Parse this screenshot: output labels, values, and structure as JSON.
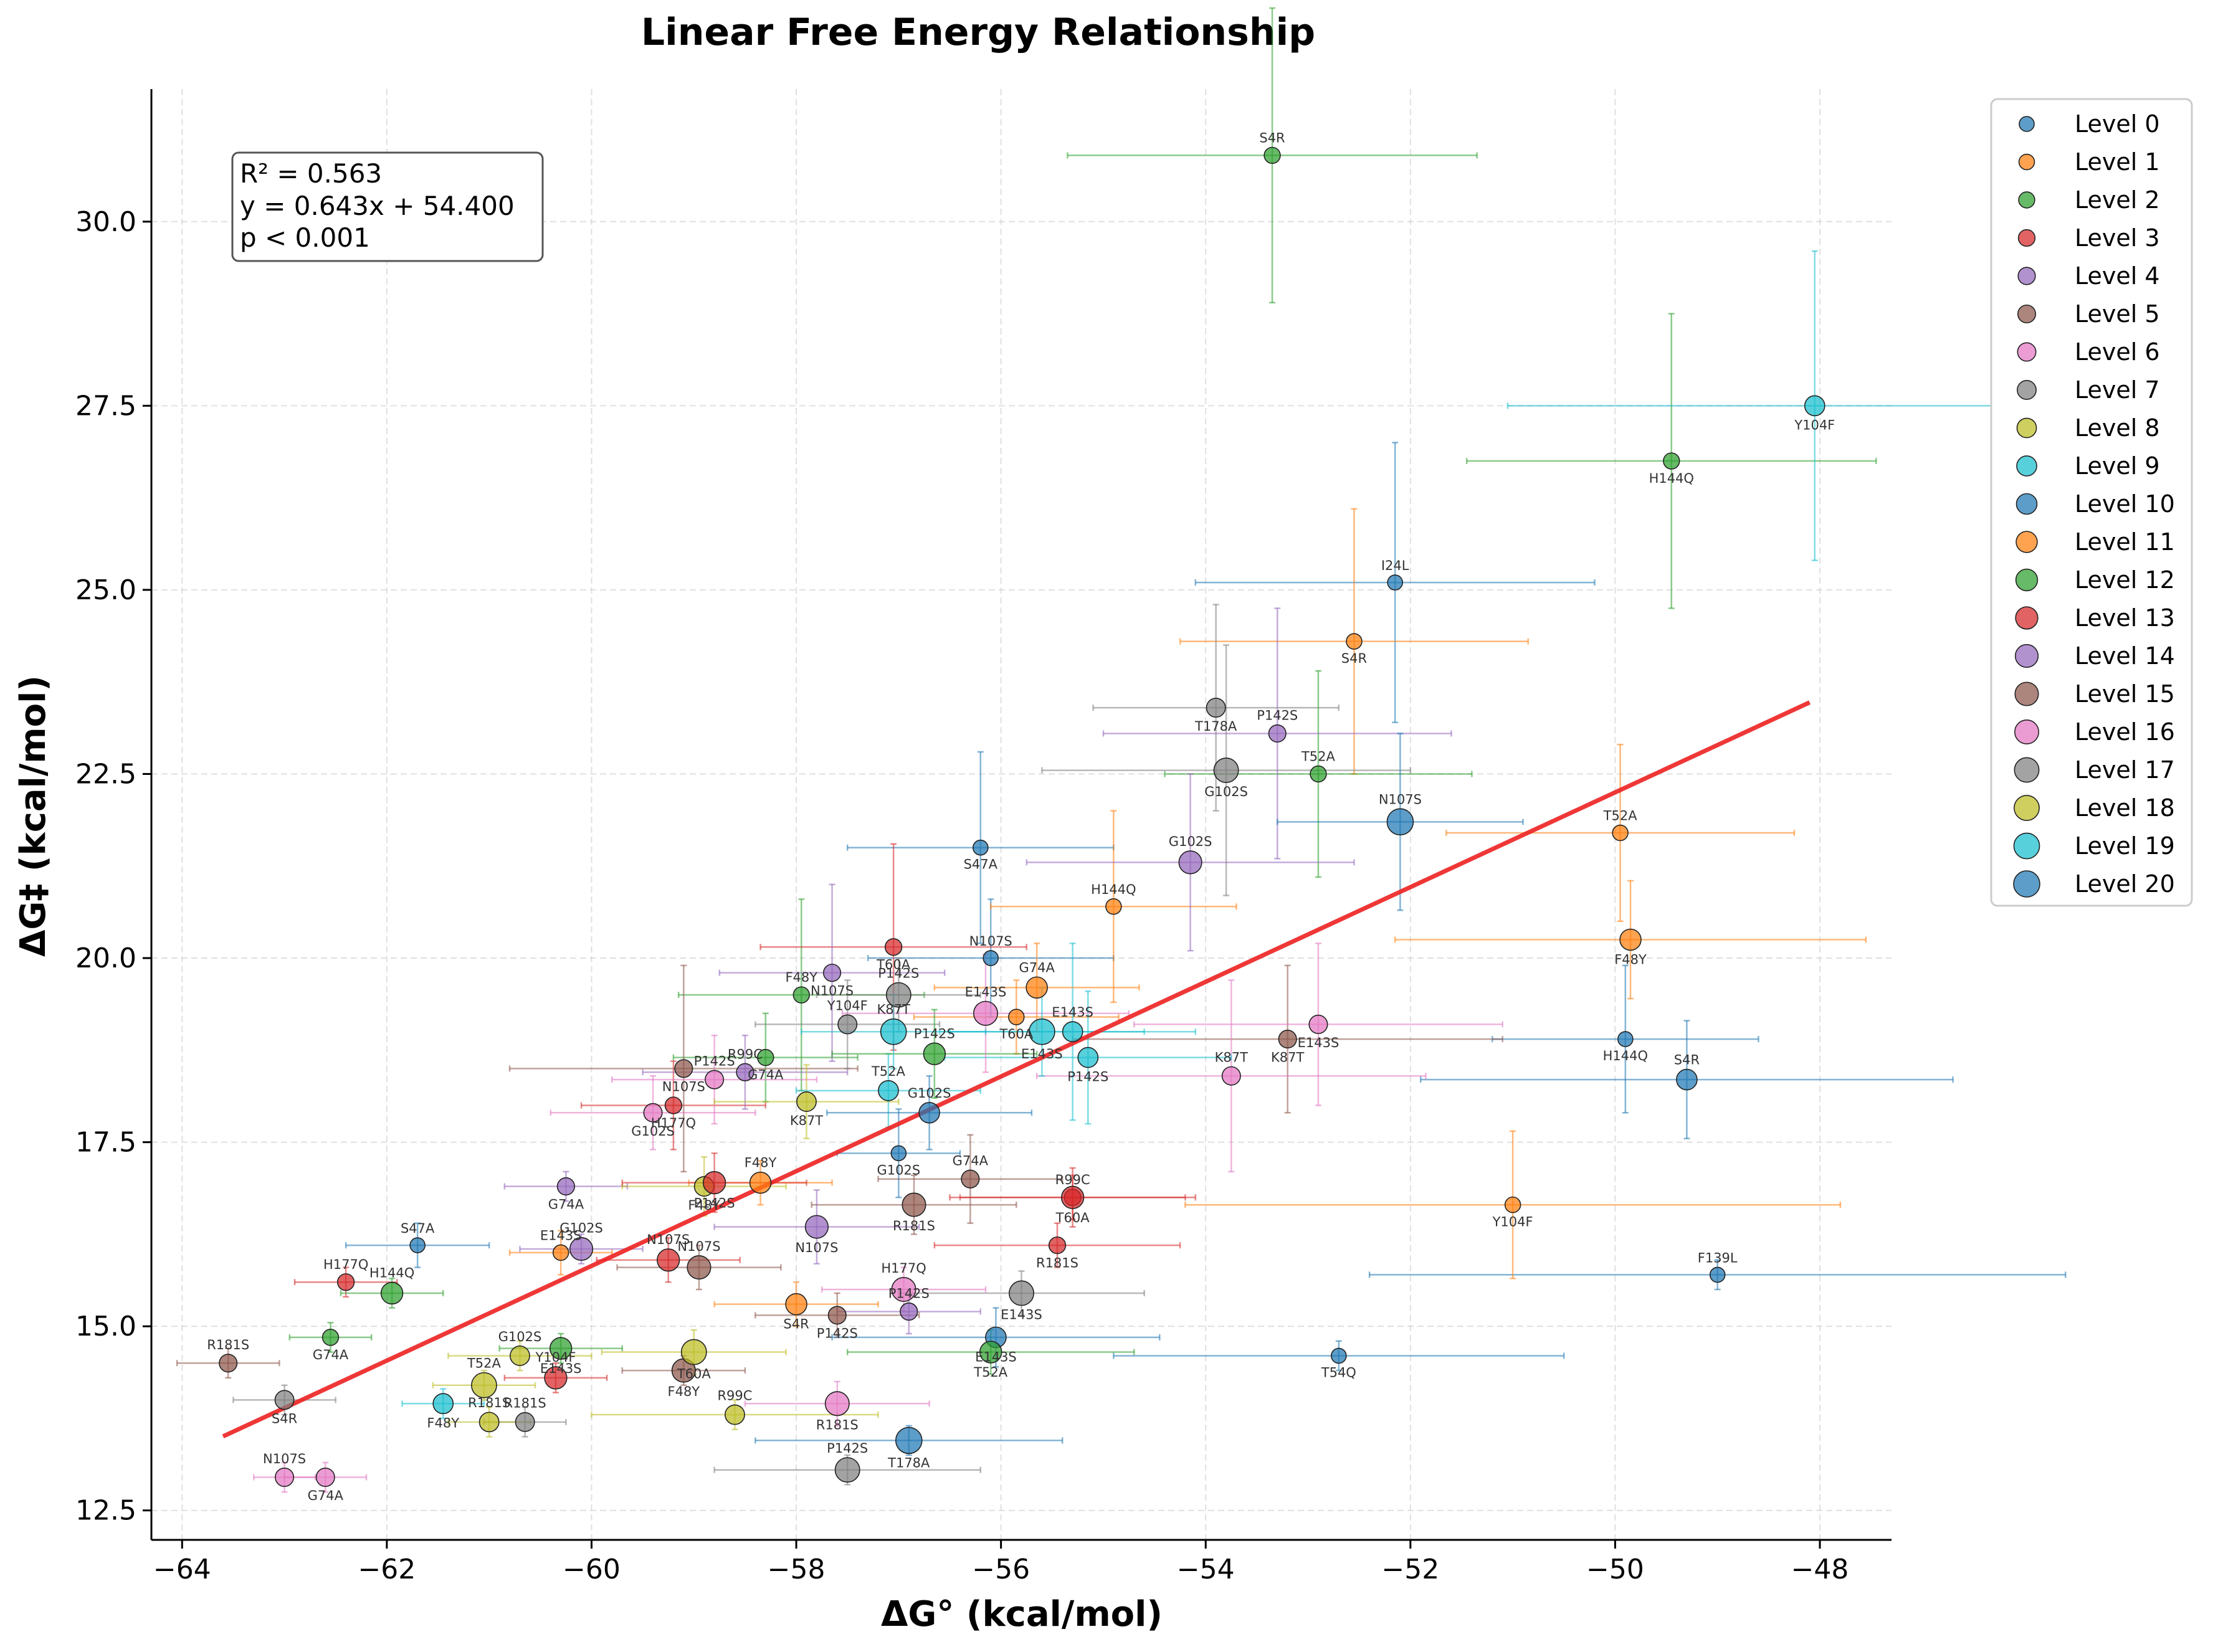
{
  "chart_data": {
    "type": "scatter",
    "title": "Linear Free Energy Relationship",
    "xlabel": "ΔG° (kcal/mol)",
    "ylabel": "ΔG‡ (kcal/mol)",
    "xlim": [
      -64.3,
      -47.3
    ],
    "ylim": [
      12.1,
      31.8
    ],
    "xticks": [
      -64,
      -62,
      -60,
      -58,
      -56,
      -54,
      -52,
      -50,
      -48
    ],
    "yticks": [
      12.5,
      15.0,
      17.5,
      20.0,
      22.5,
      25.0,
      27.5,
      30.0
    ],
    "x_tick_labels": [
      "−64",
      "−62",
      "−60",
      "−58",
      "−56",
      "−54",
      "−52",
      "−50",
      "−48"
    ],
    "y_tick_labels": [
      "12.5",
      "15.0",
      "17.5",
      "20.0",
      "22.5",
      "25.0",
      "27.5",
      "30.0"
    ],
    "grid": true,
    "legend_position": "outside-top-right",
    "stats_box": [
      "R² = 0.563",
      "y = 0.643x + 54.400",
      "p < 0.001"
    ],
    "fit_line": {
      "slope": 0.643,
      "intercept": 54.4,
      "x_range": [
        -63.6,
        -48.1
      ],
      "color": "#ee2222"
    },
    "series": [
      {
        "name": "Level 0",
        "color": "#1f77b4",
        "points": [
          {
            "x": -52.15,
            "y": 25.1,
            "xerr": 1.95,
            "yerr": 1.9,
            "label": "I24L"
          },
          {
            "x": -52.7,
            "y": 14.6,
            "xerr": 2.2,
            "yerr": 0.2,
            "label": "T54Q"
          },
          {
            "x": -49.0,
            "y": 15.7,
            "xerr": 3.4,
            "yerr": 0.2,
            "label": "F139L"
          },
          {
            "x": -49.9,
            "y": 18.9,
            "xerr": 1.3,
            "yerr": 1.0,
            "label": "H144Q"
          },
          {
            "x": -56.1,
            "y": 20.0,
            "xerr": 1.2,
            "yerr": 0.8,
            "label": "N107S"
          },
          {
            "x": -56.2,
            "y": 21.5,
            "xerr": 1.3,
            "yerr": 1.3,
            "label": "S47A"
          },
          {
            "x": -61.7,
            "y": 16.1,
            "xerr": 0.7,
            "yerr": 0.3,
            "label": "S47A"
          },
          {
            "x": -57.0,
            "y": 17.35,
            "xerr": 0.6,
            "yerr": 0.6,
            "label": "G102S"
          }
        ]
      },
      {
        "name": "Level 1",
        "color": "#ff7f0e",
        "points": [
          {
            "x": -52.55,
            "y": 24.3,
            "xerr": 1.7,
            "yerr": 1.8,
            "label": "S4R"
          },
          {
            "x": -49.95,
            "y": 21.7,
            "xerr": 1.7,
            "yerr": 1.2,
            "label": "T52A"
          },
          {
            "x": -51.0,
            "y": 16.65,
            "xerr": 3.2,
            "yerr": 1.0,
            "label": "Y104F"
          },
          {
            "x": -54.9,
            "y": 20.7,
            "xerr": 1.2,
            "yerr": 1.3,
            "label": "H144Q"
          },
          {
            "x": -55.85,
            "y": 19.2,
            "xerr": 1.0,
            "yerr": 0.5,
            "label": "T60A"
          },
          {
            "x": -60.3,
            "y": 16.0,
            "xerr": 0.5,
            "yerr": 0.3,
            "label": "E143S"
          }
        ]
      },
      {
        "name": "Level 2",
        "color": "#2ca02c",
        "points": [
          {
            "x": -53.35,
            "y": 30.9,
            "xerr": 2.0,
            "yerr": 2.0,
            "label": "S4R"
          },
          {
            "x": -49.45,
            "y": 26.75,
            "xerr": 2.0,
            "yerr": 2.0,
            "label": "H144Q"
          },
          {
            "x": -52.9,
            "y": 22.5,
            "xerr": 1.5,
            "yerr": 1.4,
            "label": "T52A"
          },
          {
            "x": -58.3,
            "y": 18.65,
            "xerr": 0.9,
            "yerr": 0.6,
            "label": "G74A"
          },
          {
            "x": -57.95,
            "y": 19.5,
            "xerr": 1.2,
            "yerr": 1.3,
            "label": "F48Y"
          },
          {
            "x": -62.55,
            "y": 14.85,
            "xerr": 0.4,
            "yerr": 0.2,
            "label": "G74A"
          }
        ]
      },
      {
        "name": "Level 3",
        "color": "#d62728",
        "points": [
          {
            "x": -57.05,
            "y": 20.15,
            "xerr": 1.3,
            "yerr": 1.4,
            "label": "T60A"
          },
          {
            "x": -55.3,
            "y": 16.75,
            "xerr": 1.2,
            "yerr": 0.4,
            "label": "R99C"
          },
          {
            "x": -59.2,
            "y": 18.0,
            "xerr": 0.9,
            "yerr": 0.6,
            "label": "H177Q"
          },
          {
            "x": -62.4,
            "y": 15.6,
            "xerr": 0.5,
            "yerr": 0.2,
            "label": "H177Q"
          },
          {
            "x": -55.45,
            "y": 16.1,
            "xerr": 1.2,
            "yerr": 0.3,
            "label": "R181S"
          }
        ]
      },
      {
        "name": "Level 4",
        "color": "#9467bd",
        "points": [
          {
            "x": -53.3,
            "y": 23.05,
            "xerr": 1.7,
            "yerr": 1.7,
            "label": "P142S"
          },
          {
            "x": -57.65,
            "y": 19.8,
            "xerr": 1.1,
            "yerr": 1.2,
            "label": "N107S"
          },
          {
            "x": -58.5,
            "y": 18.45,
            "xerr": 1.0,
            "yerr": 0.5,
            "label": "R99C"
          },
          {
            "x": -60.25,
            "y": 16.9,
            "xerr": 0.6,
            "yerr": 0.2,
            "label": "G74A"
          },
          {
            "x": -56.9,
            "y": 15.2,
            "xerr": 0.7,
            "yerr": 0.3,
            "label": "P142S"
          }
        ]
      },
      {
        "name": "Level 5",
        "color": "#8c564b",
        "points": [
          {
            "x": -53.2,
            "y": 18.9,
            "xerr": 2.1,
            "yerr": 1.0,
            "label": "K87T"
          },
          {
            "x": -56.3,
            "y": 17.0,
            "xerr": 0.9,
            "yerr": 0.6,
            "label": "G74A"
          },
          {
            "x": -59.1,
            "y": 18.5,
            "xerr": 1.7,
            "yerr": 1.4,
            "label": "N107S"
          },
          {
            "x": -63.55,
            "y": 14.5,
            "xerr": 0.5,
            "yerr": 0.2,
            "label": "R181S"
          },
          {
            "x": -57.6,
            "y": 15.15,
            "xerr": 0.8,
            "yerr": 0.3,
            "label": "P142S"
          }
        ]
      },
      {
        "name": "Level 6",
        "color": "#e377c2",
        "points": [
          {
            "x": -53.75,
            "y": 18.4,
            "xerr": 1.9,
            "yerr": 1.3,
            "label": "K87T"
          },
          {
            "x": -52.9,
            "y": 19.1,
            "xerr": 1.8,
            "yerr": 1.1,
            "label": "E143S"
          },
          {
            "x": -58.8,
            "y": 18.35,
            "xerr": 1.0,
            "yerr": 0.6,
            "label": "P142S"
          },
          {
            "x": -62.6,
            "y": 12.95,
            "xerr": 0.4,
            "yerr": 0.2,
            "label": "G74A"
          },
          {
            "x": -63.0,
            "y": 12.95,
            "xerr": 0.3,
            "yerr": 0.2,
            "label": "N107S"
          },
          {
            "x": -59.4,
            "y": 17.9,
            "xerr": 1.0,
            "yerr": 0.5,
            "label": "G102S"
          }
        ]
      },
      {
        "name": "Level 7",
        "color": "#7f7f7f",
        "points": [
          {
            "x": -53.9,
            "y": 23.4,
            "xerr": 1.2,
            "yerr": 1.4,
            "label": "T178A"
          },
          {
            "x": -57.5,
            "y": 19.1,
            "xerr": 0.9,
            "yerr": 0.6,
            "label": "Y104F"
          },
          {
            "x": -63.0,
            "y": 14.0,
            "xerr": 0.5,
            "yerr": 0.2,
            "label": "S4R"
          },
          {
            "x": -60.65,
            "y": 13.7,
            "xerr": 0.4,
            "yerr": 0.2,
            "label": "R181S"
          }
        ]
      },
      {
        "name": "Level 8",
        "color": "#bcbd22",
        "points": [
          {
            "x": -58.6,
            "y": 13.8,
            "xerr": 1.4,
            "yerr": 0.2,
            "label": "R99C"
          },
          {
            "x": -57.9,
            "y": 18.05,
            "xerr": 0.9,
            "yerr": 0.5,
            "label": "K87T"
          },
          {
            "x": -60.7,
            "y": 14.6,
            "xerr": 0.7,
            "yerr": 0.2,
            "label": "G102S"
          },
          {
            "x": -58.9,
            "y": 16.9,
            "xerr": 0.8,
            "yerr": 0.4,
            "label": "F48Y"
          },
          {
            "x": -61.0,
            "y": 13.7,
            "xerr": 0.4,
            "yerr": 0.2,
            "label": "R181S"
          }
        ]
      },
      {
        "name": "Level 9",
        "color": "#17becf",
        "points": [
          {
            "x": -48.05,
            "y": 27.5,
            "xerr": 3.0,
            "yerr": 2.1,
            "label": "Y104F"
          },
          {
            "x": -55.3,
            "y": 19.0,
            "xerr": 1.2,
            "yerr": 1.2,
            "label": "E143S"
          },
          {
            "x": -55.15,
            "y": 18.65,
            "xerr": 1.4,
            "yerr": 0.9,
            "label": "P142S"
          },
          {
            "x": -57.1,
            "y": 18.2,
            "xerr": 0.9,
            "yerr": 0.5,
            "label": "T52A"
          },
          {
            "x": -61.45,
            "y": 13.95,
            "xerr": 0.4,
            "yerr": 0.2,
            "label": "F48Y"
          }
        ]
      },
      {
        "name": "Level 10",
        "color": "#1f77b4",
        "points": [
          {
            "x": -49.3,
            "y": 18.35,
            "xerr": 2.6,
            "yerr": 0.8,
            "label": "S4R"
          },
          {
            "x": -56.05,
            "y": 14.85,
            "xerr": 1.6,
            "yerr": 0.4,
            "label": "E143S"
          },
          {
            "x": -56.7,
            "y": 17.9,
            "xerr": 1.0,
            "yerr": 0.5,
            "label": "G102S"
          }
        ]
      },
      {
        "name": "Level 11",
        "color": "#ff7f0e",
        "points": [
          {
            "x": -49.85,
            "y": 20.25,
            "xerr": 2.3,
            "yerr": 0.8,
            "label": "F48Y"
          },
          {
            "x": -55.65,
            "y": 19.6,
            "xerr": 1.0,
            "yerr": 0.6,
            "label": "G74A"
          },
          {
            "x": -58.0,
            "y": 15.3,
            "xerr": 0.8,
            "yerr": 0.3,
            "label": "S4R"
          },
          {
            "x": -58.35,
            "y": 16.95,
            "xerr": 0.7,
            "yerr": 0.3,
            "label": "F48Y"
          }
        ]
      },
      {
        "name": "Level 12",
        "color": "#2ca02c",
        "points": [
          {
            "x": -56.65,
            "y": 18.7,
            "xerr": 1.0,
            "yerr": 0.6,
            "label": "P142S"
          },
          {
            "x": -56.1,
            "y": 14.65,
            "xerr": 1.4,
            "yerr": 0.3,
            "label": "T52A"
          },
          {
            "x": -61.95,
            "y": 15.45,
            "xerr": 0.5,
            "yerr": 0.2,
            "label": "H144Q"
          },
          {
            "x": -60.3,
            "y": 14.7,
            "xerr": 0.6,
            "yerr": 0.2,
            "label": "E143S"
          }
        ]
      },
      {
        "name": "Level 13",
        "color": "#d62728",
        "points": [
          {
            "x": -58.8,
            "y": 16.95,
            "xerr": 0.9,
            "yerr": 0.4,
            "label": "P142S"
          },
          {
            "x": -59.25,
            "y": 15.9,
            "xerr": 0.7,
            "yerr": 0.3,
            "label": "N107S"
          },
          {
            "x": -55.3,
            "y": 16.75,
            "xerr": 1.1,
            "yerr": 0.3,
            "label": "T60A"
          },
          {
            "x": -60.35,
            "y": 14.3,
            "xerr": 0.5,
            "yerr": 0.2,
            "label": "Y104F"
          }
        ]
      },
      {
        "name": "Level 14",
        "color": "#9467bd",
        "points": [
          {
            "x": -54.15,
            "y": 21.3,
            "xerr": 1.6,
            "yerr": 1.2,
            "label": "G102S"
          },
          {
            "x": -57.8,
            "y": 16.35,
            "xerr": 1.0,
            "yerr": 0.5,
            "label": "N107S"
          },
          {
            "x": -60.1,
            "y": 16.05,
            "xerr": 0.6,
            "yerr": 0.2,
            "label": "G102S"
          }
        ]
      },
      {
        "name": "Level 15",
        "color": "#8c564b",
        "points": [
          {
            "x": -56.85,
            "y": 16.65,
            "xerr": 1.0,
            "yerr": 0.4,
            "label": "R181S"
          },
          {
            "x": -58.95,
            "y": 15.8,
            "xerr": 0.8,
            "yerr": 0.3,
            "label": "N107S"
          },
          {
            "x": -59.1,
            "y": 14.4,
            "xerr": 0.6,
            "yerr": 0.2,
            "label": "F48Y"
          }
        ]
      },
      {
        "name": "Level 16",
        "color": "#e377c2",
        "points": [
          {
            "x": -56.15,
            "y": 19.25,
            "xerr": 1.4,
            "yerr": 0.8,
            "label": "E143S"
          },
          {
            "x": -57.6,
            "y": 13.95,
            "xerr": 0.9,
            "yerr": 0.3,
            "label": "R181S"
          },
          {
            "x": -56.95,
            "y": 15.5,
            "xerr": 0.8,
            "yerr": 0.3,
            "label": "H177Q"
          }
        ]
      },
      {
        "name": "Level 17",
        "color": "#7f7f7f",
        "points": [
          {
            "x": -53.8,
            "y": 22.55,
            "xerr": 1.8,
            "yerr": 1.7,
            "label": "G102S"
          },
          {
            "x": -57.5,
            "y": 13.05,
            "xerr": 1.3,
            "yerr": 0.2,
            "label": "P142S"
          },
          {
            "x": -55.8,
            "y": 15.45,
            "xerr": 1.2,
            "yerr": 0.3,
            "label": "E143S"
          },
          {
            "x": -57.0,
            "y": 19.5,
            "xerr": 0.8,
            "yerr": 0.5,
            "label": "P142S"
          }
        ]
      },
      {
        "name": "Level 18",
        "color": "#bcbd22",
        "points": [
          {
            "x": -61.05,
            "y": 14.2,
            "xerr": 0.5,
            "yerr": 0.2,
            "label": "T52A"
          },
          {
            "x": -59.0,
            "y": 14.65,
            "xerr": 0.9,
            "yerr": 0.3,
            "label": "T60A"
          }
        ]
      },
      {
        "name": "Level 19",
        "color": "#17becf",
        "points": [
          {
            "x": -55.6,
            "y": 19.0,
            "xerr": 1.0,
            "yerr": 0.6,
            "label": "E143S"
          },
          {
            "x": -57.05,
            "y": 19.0,
            "xerr": 0.9,
            "yerr": 0.5,
            "label": "K87T"
          }
        ]
      },
      {
        "name": "Level 20",
        "color": "#1f77b4",
        "points": [
          {
            "x": -52.1,
            "y": 21.85,
            "xerr": 1.2,
            "yerr": 1.2,
            "label": "N107S"
          },
          {
            "x": -56.9,
            "y": 13.45,
            "xerr": 1.5,
            "yerr": 0.2,
            "label": "T178A"
          }
        ]
      }
    ]
  }
}
